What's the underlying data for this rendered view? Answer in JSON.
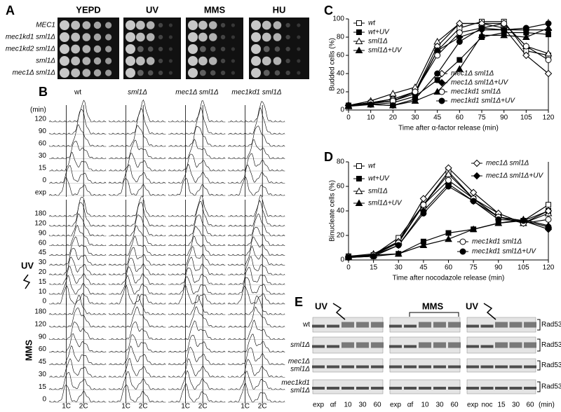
{
  "panel_a": {
    "label": "A",
    "conditions": [
      "YEPD",
      "UV",
      "MMS",
      "HU"
    ],
    "strains": [
      "MEC1",
      "mec1kd1 sml1Δ",
      "mec1kd2 sml1Δ",
      "sml1Δ",
      "mec1Δ sml1Δ"
    ]
  },
  "panel_b": {
    "label": "B",
    "strains": [
      "wt",
      "sml1Δ",
      "mec1Δ sml1Δ",
      "mec1kd1 sml1Δ"
    ],
    "unit": "(min)",
    "untreated_times": [
      "120",
      "90",
      "60",
      "30",
      "15",
      "0",
      "exp"
    ],
    "uv_label": "UV",
    "uv_times": [
      "180",
      "120",
      "90",
      "60",
      "45",
      "30",
      "20",
      "15",
      "10",
      "0"
    ],
    "mms_label": "MMS",
    "mms_times": [
      "180",
      "120",
      "90",
      "60",
      "45",
      "30",
      "15",
      "0"
    ],
    "dna_content": [
      "1C",
      "2C"
    ]
  },
  "chart_data": [
    {
      "type": "line",
      "label": "C",
      "ylabel": "Budded cells (%)",
      "xlabel": "Time after α-factor release (min)",
      "categories": [
        0,
        10,
        20,
        30,
        45,
        60,
        75,
        90,
        105,
        120
      ],
      "ylim": [
        0,
        100
      ],
      "yticks": [
        0,
        20,
        40,
        60,
        80,
        100
      ],
      "series": [
        {
          "name": "wt",
          "color": "#000000",
          "marker": "square",
          "filled": false,
          "values": [
            5,
            8,
            12,
            20,
            65,
            90,
            97,
            97,
            65,
            60
          ]
        },
        {
          "name": "wt+UV",
          "color": "#000000",
          "marker": "square",
          "filled": true,
          "values": [
            5,
            6,
            8,
            15,
            33,
            55,
            80,
            85,
            85,
            83
          ]
        },
        {
          "name": "sml1Δ",
          "color": "#000000",
          "marker": "triangle",
          "filled": false,
          "values": [
            5,
            10,
            18,
            25,
            75,
            95,
            95,
            95,
            70,
            62
          ]
        },
        {
          "name": "sml1Δ+UV",
          "color": "#000000",
          "marker": "triangle",
          "filled": true,
          "values": [
            4,
            6,
            5,
            10,
            20,
            45,
            82,
            82,
            80,
            90
          ]
        },
        {
          "name": "mec1Δ sml1Δ",
          "color": "#000000",
          "marker": "diamond",
          "filled": false,
          "values": [
            5,
            8,
            12,
            20,
            70,
            95,
            95,
            90,
            60,
            40
          ]
        },
        {
          "name": "mec1Δ sml1Δ+UV",
          "color": "#000000",
          "marker": "diamond",
          "filled": true,
          "values": [
            5,
            7,
            10,
            18,
            65,
            80,
            88,
            88,
            88,
            88
          ]
        },
        {
          "name": "mec1kd1 sml1Δ",
          "color": "#000000",
          "marker": "circle",
          "filled": false,
          "values": [
            5,
            8,
            10,
            20,
            60,
            85,
            90,
            95,
            70,
            55
          ]
        },
        {
          "name": "mec1kd1 sml1Δ+UV",
          "color": "#000000",
          "marker": "circle",
          "filled": true,
          "values": [
            5,
            6,
            5,
            12,
            40,
            75,
            90,
            88,
            90,
            95
          ]
        }
      ]
    },
    {
      "type": "line",
      "label": "D",
      "ylabel": "Binucleate cells (%)",
      "xlabel": "Time after nocodazole release (min)",
      "x": [
        0,
        15,
        30,
        45,
        60,
        75,
        90,
        105,
        120
      ],
      "xlim": [
        0,
        120
      ],
      "xticks": [
        0,
        15,
        30,
        45,
        60,
        75,
        90,
        105,
        120
      ],
      "ylim": [
        0,
        80
      ],
      "yticks": [
        0,
        20,
        40,
        60,
        80
      ],
      "series": [
        {
          "name": "wt",
          "color": "#000000",
          "marker": "square",
          "filled": false,
          "values": [
            3,
            4,
            18,
            45,
            72,
            50,
            35,
            32,
            45
          ]
        },
        {
          "name": "wt+UV",
          "color": "#000000",
          "marker": "square",
          "filled": true,
          "values": [
            2,
            3,
            5,
            15,
            22,
            25,
            30,
            32,
            40
          ]
        },
        {
          "name": "sml1Δ",
          "color": "#000000",
          "marker": "triangle",
          "filled": false,
          "values": [
            3,
            5,
            15,
            45,
            70,
            50,
            38,
            30,
            38
          ]
        },
        {
          "name": "sml1Δ+UV",
          "color": "#000000",
          "marker": "triangle",
          "filled": true,
          "values": [
            2,
            4,
            5,
            12,
            17,
            25,
            30,
            33,
            28
          ]
        },
        {
          "name": "mec1Δ sml1Δ",
          "color": "#000000",
          "marker": "diamond",
          "filled": false,
          "values": [
            3,
            4,
            15,
            50,
            75,
            55,
            38,
            30,
            40
          ]
        },
        {
          "name": "mec1Δ sml1Δ+UV",
          "color": "#000000",
          "marker": "diamond",
          "filled": true,
          "values": [
            2,
            4,
            12,
            40,
            62,
            48,
            35,
            32,
            25
          ]
        },
        {
          "name": "mec1kd1 sml1Δ",
          "color": "#000000",
          "marker": "circle",
          "filled": false,
          "values": [
            2,
            4,
            14,
            45,
            65,
            50,
            35,
            30,
            33
          ]
        },
        {
          "name": "mec1kd1 sml1Δ+UV",
          "color": "#000000",
          "marker": "circle",
          "filled": true,
          "values": [
            2,
            3,
            12,
            38,
            60,
            48,
            33,
            32,
            27
          ]
        }
      ]
    }
  ],
  "panel_e": {
    "label": "E",
    "treatments": [
      "UV",
      "MMS",
      "UV"
    ],
    "strains": [
      [
        "wt"
      ],
      [
        "sml1Δ"
      ],
      [
        "mec1Δ",
        "sml1Δ"
      ],
      [
        "mec1kd1",
        "sml1Δ"
      ]
    ],
    "protein": "Rad53",
    "lanes": [
      "exp",
      "αf",
      "10",
      "30",
      "60",
      "exp",
      "αf",
      "10",
      "30",
      "60",
      "exp",
      "noc",
      "15",
      "30",
      "60"
    ],
    "unit": "(min)"
  }
}
